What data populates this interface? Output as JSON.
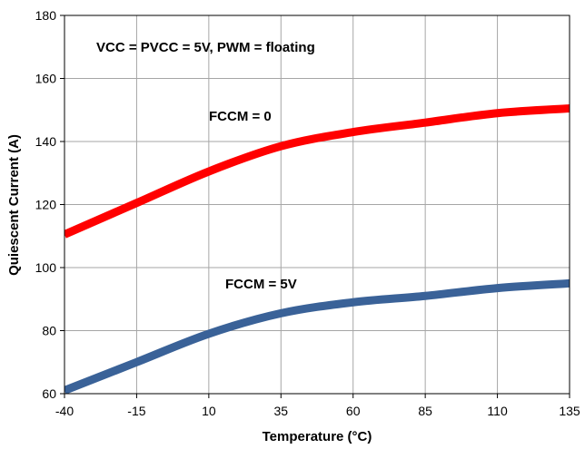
{
  "chart_data": {
    "type": "line",
    "title": "",
    "xlabel": "Temperature (°C)",
    "ylabel": "Quiescent Current (A)",
    "x": [
      -40,
      -15,
      10,
      35,
      60,
      85,
      110,
      135
    ],
    "xlim": [
      -40,
      135
    ],
    "ylim": [
      60,
      180
    ],
    "xticks": [
      "-40",
      "-15",
      "10",
      "35",
      "60",
      "85",
      "110",
      "135"
    ],
    "yticks": [
      "60",
      "80",
      "100",
      "120",
      "140",
      "160",
      "180"
    ],
    "grid": true,
    "legend": "none",
    "series": [
      {
        "label": "FCCM = 0",
        "color": "#ff0000",
        "values": [
          110.5,
          120.5,
          130.5,
          138.5,
          143,
          146,
          149,
          150.5
        ]
      },
      {
        "label": "FCCM = 5V",
        "color": "#3a6298",
        "values": [
          61,
          70,
          79,
          85.5,
          89,
          91,
          93.5,
          95
        ]
      }
    ],
    "annotations": [
      {
        "text": "VCC = PVCC = 5V, PWM = floating"
      },
      {
        "text": "FCCM = 0"
      },
      {
        "text": "FCCM = 5V"
      }
    ]
  }
}
